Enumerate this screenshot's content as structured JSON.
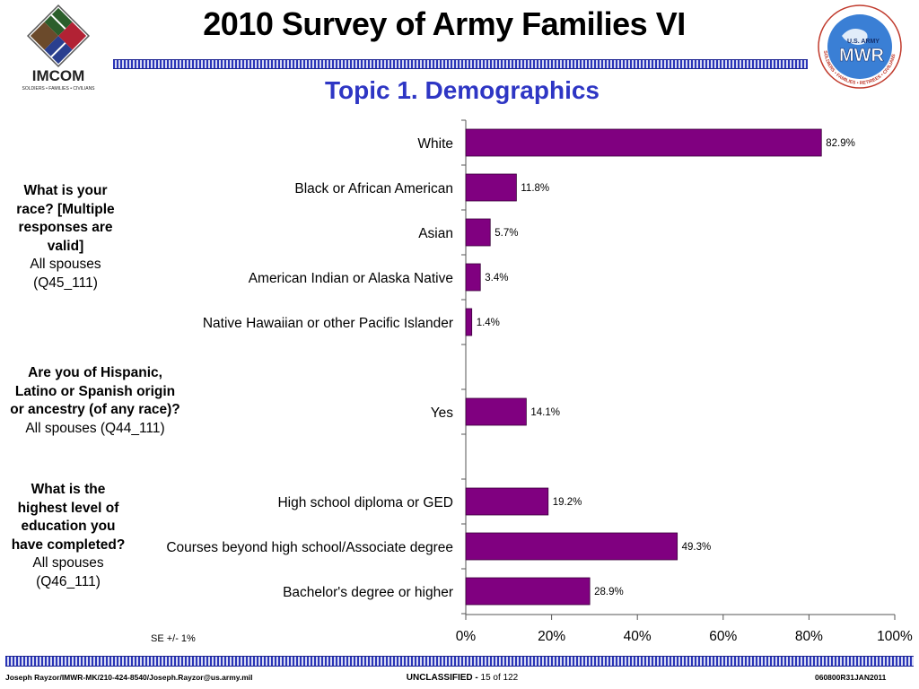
{
  "slide": {
    "title": "2010 Survey of Army Families VI",
    "subtitle": "Topic 1. Demographics"
  },
  "logos": {
    "left": {
      "icon": "imcom-logo-icon",
      "text": "IMCOM",
      "tagline": "SOLDIERS • FAMILIES • CIVILIANS"
    },
    "right": {
      "icon": "mwr-logo-icon",
      "text_top": "U.S. ARMY",
      "text_main": "MWR",
      "ring_text": "SOLDIERS • FAMILIES • RETIREES • CIVILIANS"
    }
  },
  "questions": [
    {
      "question": "What is your race? [Multiple responses are valid]",
      "population": "All spouses (Q45_111)"
    },
    {
      "question": "Are you of Hispanic, Latino or Spanish origin or ancestry (of any race)?",
      "population": "All spouses (Q44_111)"
    },
    {
      "question": "What is the highest level of education you have completed?",
      "population": "All spouses (Q46_111)"
    }
  ],
  "note": "SE +/- 1%",
  "footer": {
    "left": "Joseph Rayzor/IMWR-MK/210-424-8540/Joseph.Rayzor@us.army.mil",
    "classification": "UNCLASSIFIED -",
    "page": "15 of 122",
    "right": "060800R31JAN2011"
  },
  "colors": {
    "bar": "#800080",
    "accent": "#2e36c4"
  },
  "chart_data": {
    "type": "bar",
    "orientation": "horizontal",
    "categories": [
      "White",
      "Black or African American",
      "Asian",
      "American Indian or Alaska Native",
      "Native Hawaiian or other Pacific Islander",
      "",
      "Yes",
      "",
      "High school diploma or GED",
      "Courses beyond high school/Associate degree",
      "Bachelor's degree or higher"
    ],
    "values": [
      82.9,
      11.8,
      5.7,
      3.4,
      1.4,
      null,
      14.1,
      null,
      19.2,
      49.3,
      28.9
    ],
    "value_labels": [
      "82.9%",
      "11.8%",
      "5.7%",
      "3.4%",
      "1.4%",
      "",
      "14.1%",
      "",
      "19.2%",
      "49.3%",
      "28.9%"
    ],
    "x_ticks": [
      "0%",
      "20%",
      "40%",
      "60%",
      "80%",
      "100%"
    ],
    "xlim": [
      0,
      100
    ],
    "grid": false,
    "legend": "none"
  }
}
